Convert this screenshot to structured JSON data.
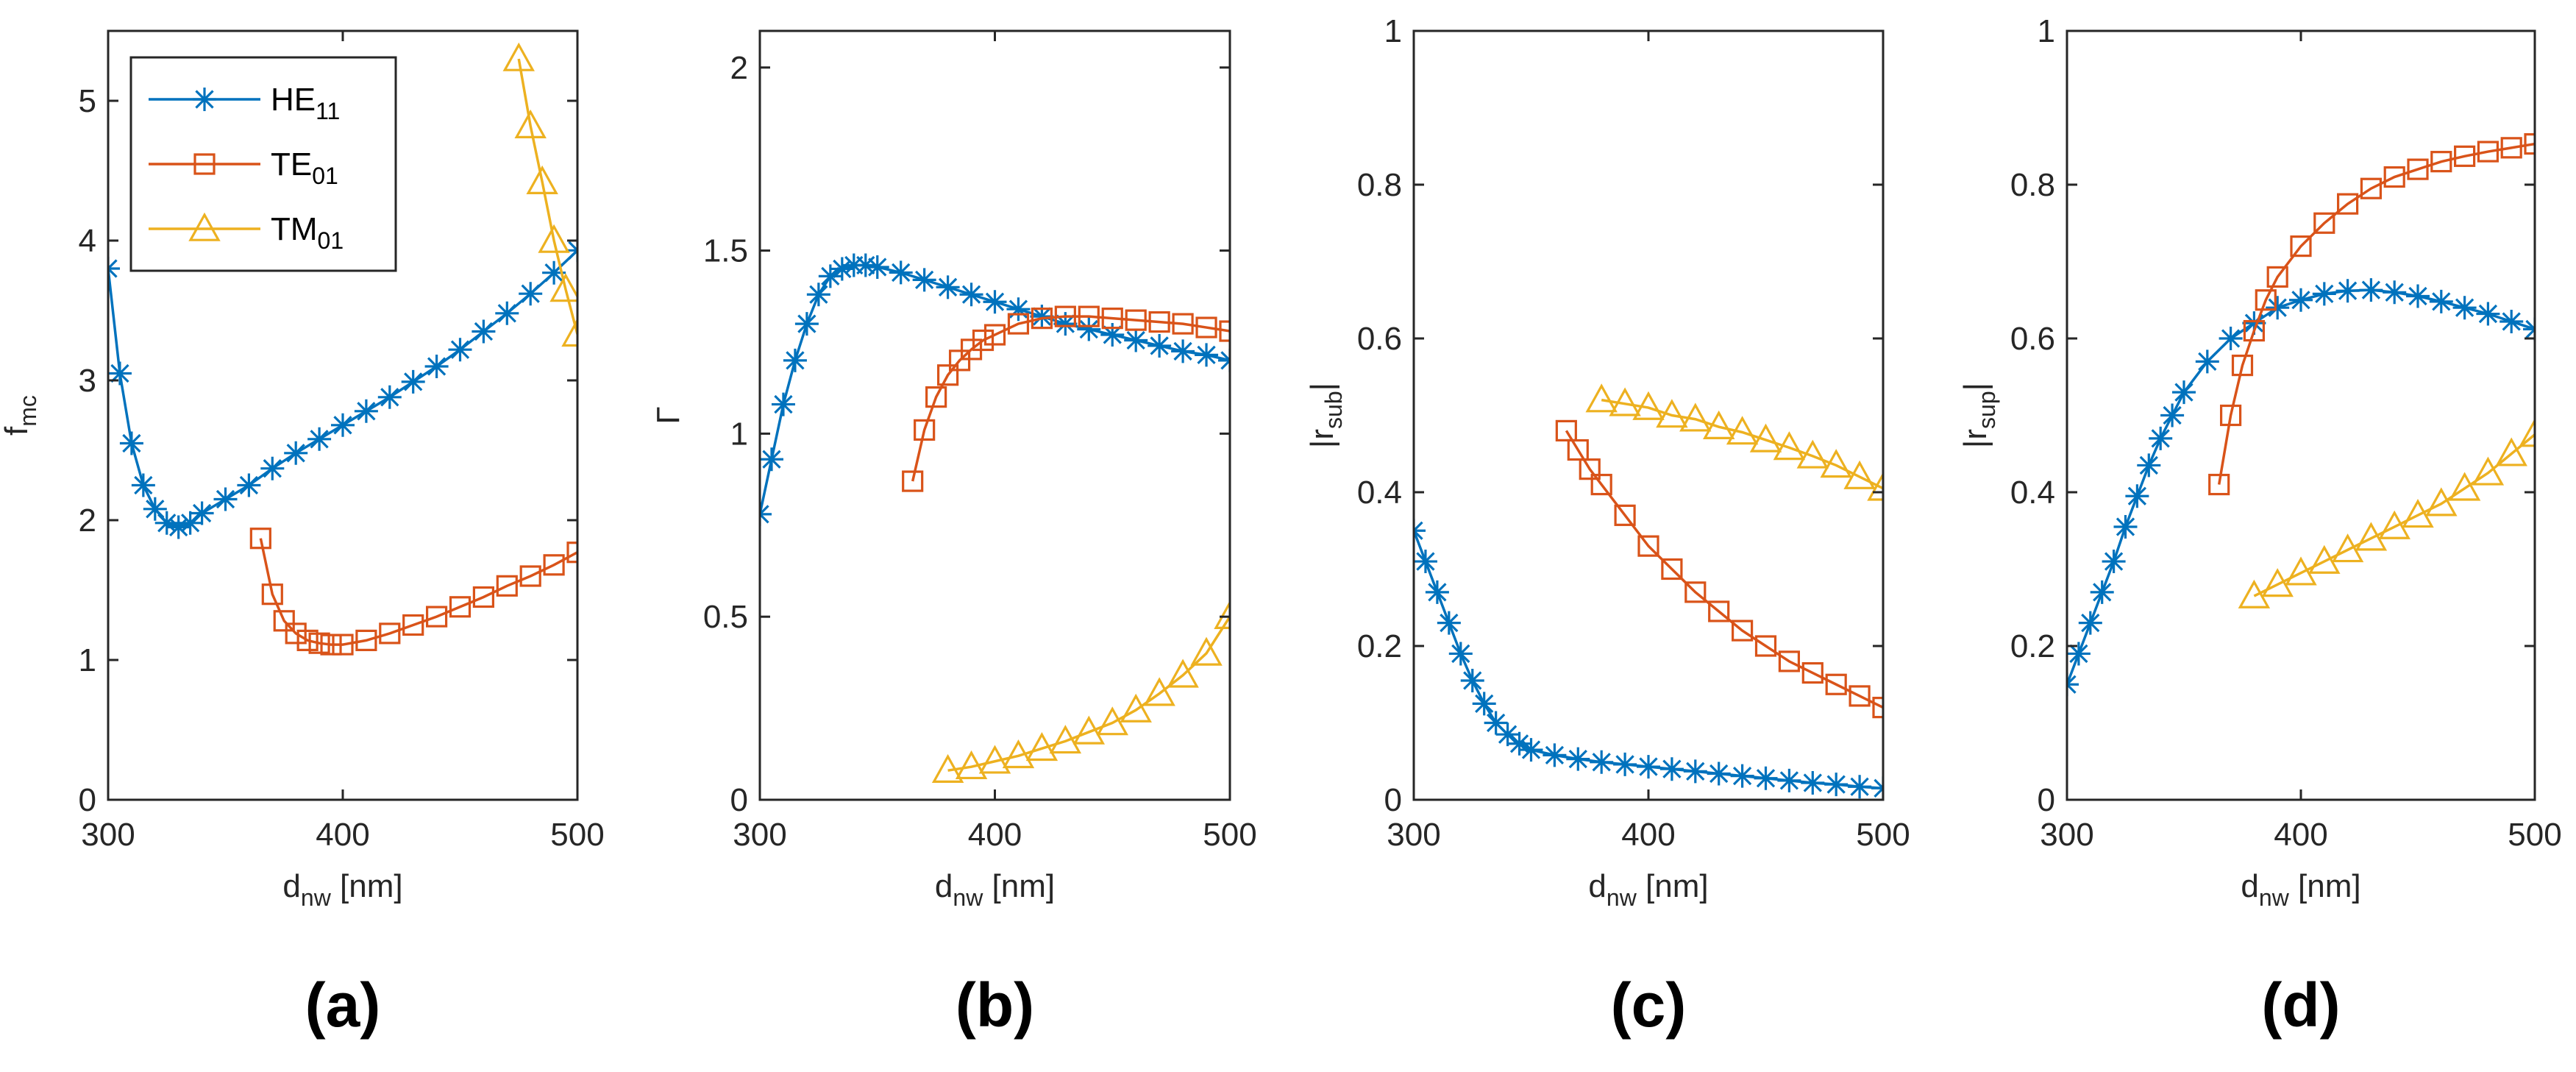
{
  "colors": {
    "HE11": "#0072BD",
    "TE01": "#D95319",
    "TM01": "#EDB120",
    "axis": "#262626"
  },
  "legend": [
    {
      "key": "HE11",
      "base": "HE",
      "sub": "11",
      "marker": "star"
    },
    {
      "key": "TE01",
      "base": "TE",
      "sub": "01",
      "marker": "square"
    },
    {
      "key": "TM01",
      "base": "TM",
      "sub": "01",
      "marker": "triangle"
    }
  ],
  "chart_data": [
    {
      "type": "line",
      "panel_label": "(a)",
      "xlabel": {
        "base": "d",
        "sub": "nw",
        "rest": " [nm]"
      },
      "ylabel": {
        "base": "f",
        "sub": "mc",
        "rest": ""
      },
      "xlim": [
        300,
        500
      ],
      "ylim": [
        0,
        5.5
      ],
      "xticks": [
        "300",
        "400",
        "500"
      ],
      "yticks": [
        "0",
        "1",
        "2",
        "3",
        "4",
        "5"
      ],
      "ytick_values": [
        0,
        1,
        2,
        3,
        4,
        5
      ],
      "series": [
        {
          "name": "HE11",
          "x": [
            300,
            305,
            310,
            315,
            320,
            325,
            330,
            335,
            340,
            350,
            360,
            370,
            380,
            390,
            400,
            410,
            420,
            430,
            440,
            450,
            460,
            470,
            480,
            490,
            500
          ],
          "y": [
            3.8,
            3.05,
            2.55,
            2.25,
            2.08,
            1.98,
            1.95,
            1.98,
            2.05,
            2.15,
            2.25,
            2.37,
            2.48,
            2.58,
            2.68,
            2.78,
            2.88,
            2.99,
            3.1,
            3.22,
            3.35,
            3.48,
            3.62,
            3.77,
            3.93
          ]
        },
        {
          "name": "TE01",
          "x": [
            365,
            370,
            375,
            380,
            385,
            390,
            395,
            400,
            410,
            420,
            430,
            440,
            450,
            460,
            470,
            480,
            490,
            500
          ],
          "y": [
            1.87,
            1.47,
            1.28,
            1.19,
            1.14,
            1.12,
            1.11,
            1.11,
            1.14,
            1.19,
            1.25,
            1.31,
            1.38,
            1.45,
            1.53,
            1.6,
            1.68,
            1.77
          ]
        },
        {
          "name": "TM01",
          "x": [
            475,
            480,
            485,
            490,
            495,
            500
          ],
          "y": [
            5.3,
            4.82,
            4.42,
            4.0,
            3.65,
            3.33
          ]
        }
      ]
    },
    {
      "type": "line",
      "panel_label": "(b)",
      "xlabel": {
        "base": "d",
        "sub": "nw",
        "rest": " [nm]"
      },
      "ylabel": {
        "base": "Γ",
        "sub": "",
        "rest": ""
      },
      "xlim": [
        300,
        500
      ],
      "ylim": [
        0,
        2.1
      ],
      "xticks": [
        "300",
        "400",
        "500"
      ],
      "yticks": [
        "0",
        "0.5",
        "1",
        "1.5",
        "2"
      ],
      "ytick_values": [
        0,
        0.5,
        1,
        1.5,
        2
      ],
      "series": [
        {
          "name": "HE11",
          "x": [
            300,
            305,
            310,
            315,
            320,
            325,
            330,
            335,
            340,
            345,
            350,
            360,
            370,
            380,
            390,
            400,
            410,
            420,
            430,
            440,
            450,
            460,
            470,
            480,
            490,
            500
          ],
          "y": [
            0.78,
            0.93,
            1.08,
            1.2,
            1.3,
            1.38,
            1.43,
            1.45,
            1.46,
            1.46,
            1.455,
            1.44,
            1.42,
            1.4,
            1.38,
            1.36,
            1.34,
            1.32,
            1.3,
            1.285,
            1.27,
            1.255,
            1.24,
            1.225,
            1.215,
            1.2
          ]
        },
        {
          "name": "TE01",
          "x": [
            365,
            370,
            375,
            380,
            385,
            390,
            395,
            400,
            410,
            420,
            430,
            440,
            450,
            460,
            470,
            480,
            490,
            500
          ],
          "y": [
            0.87,
            1.01,
            1.1,
            1.16,
            1.2,
            1.23,
            1.255,
            1.27,
            1.3,
            1.315,
            1.32,
            1.32,
            1.315,
            1.31,
            1.305,
            1.3,
            1.29,
            1.28
          ]
        },
        {
          "name": "TM01",
          "x": [
            380,
            390,
            400,
            410,
            420,
            430,
            440,
            450,
            460,
            470,
            480,
            490,
            500
          ],
          "y": [
            0.08,
            0.09,
            0.105,
            0.12,
            0.14,
            0.16,
            0.185,
            0.21,
            0.245,
            0.29,
            0.34,
            0.4,
            0.5
          ]
        }
      ]
    },
    {
      "type": "line",
      "panel_label": "(c)",
      "xlabel": {
        "base": "d",
        "sub": "nw",
        "rest": " [nm]"
      },
      "ylabel": {
        "base": "|r",
        "sub": "sub",
        "rest": "|"
      },
      "xlim": [
        300,
        500
      ],
      "ylim": [
        0,
        1
      ],
      "xticks": [
        "300",
        "400",
        "500"
      ],
      "yticks": [
        "0",
        "0.2",
        "0.4",
        "0.6",
        "0.8",
        "1"
      ],
      "ytick_values": [
        0,
        0.2,
        0.4,
        0.6,
        0.8,
        1
      ],
      "series": [
        {
          "name": "HE11",
          "x": [
            300,
            305,
            310,
            315,
            320,
            325,
            330,
            335,
            340,
            345,
            350,
            360,
            370,
            380,
            390,
            400,
            410,
            420,
            430,
            440,
            450,
            460,
            470,
            480,
            490,
            500
          ],
          "y": [
            0.35,
            0.31,
            0.27,
            0.23,
            0.19,
            0.155,
            0.125,
            0.1,
            0.085,
            0.073,
            0.065,
            0.058,
            0.053,
            0.049,
            0.046,
            0.043,
            0.04,
            0.037,
            0.034,
            0.031,
            0.028,
            0.025,
            0.022,
            0.02,
            0.017,
            0.015
          ]
        },
        {
          "name": "TE01",
          "x": [
            365,
            370,
            375,
            380,
            390,
            400,
            410,
            420,
            430,
            440,
            450,
            460,
            470,
            480,
            490,
            500
          ],
          "y": [
            0.48,
            0.455,
            0.43,
            0.41,
            0.37,
            0.33,
            0.3,
            0.27,
            0.245,
            0.22,
            0.2,
            0.18,
            0.165,
            0.15,
            0.135,
            0.12
          ]
        },
        {
          "name": "TM01",
          "x": [
            380,
            390,
            400,
            410,
            420,
            430,
            440,
            450,
            460,
            470,
            480,
            490,
            500
          ],
          "y": [
            0.52,
            0.515,
            0.51,
            0.5,
            0.495,
            0.485,
            0.478,
            0.468,
            0.458,
            0.447,
            0.435,
            0.42,
            0.405
          ]
        }
      ]
    },
    {
      "type": "line",
      "panel_label": "(d)",
      "xlabel": {
        "base": "d",
        "sub": "nw",
        "rest": " [nm]"
      },
      "ylabel": {
        "base": "|r",
        "sub": "sup",
        "rest": "|"
      },
      "xlim": [
        300,
        500
      ],
      "ylim": [
        0,
        1
      ],
      "xticks": [
        "300",
        "400",
        "500"
      ],
      "yticks": [
        "0",
        "0.2",
        "0.4",
        "0.6",
        "0.8",
        "1"
      ],
      "ytick_values": [
        0,
        0.2,
        0.4,
        0.6,
        0.8,
        1
      ],
      "series": [
        {
          "name": "HE11",
          "x": [
            300,
            305,
            310,
            315,
            320,
            325,
            330,
            335,
            340,
            345,
            350,
            360,
            370,
            380,
            390,
            400,
            410,
            420,
            430,
            440,
            450,
            460,
            470,
            480,
            490,
            500
          ],
          "y": [
            0.15,
            0.19,
            0.23,
            0.27,
            0.31,
            0.355,
            0.395,
            0.435,
            0.47,
            0.5,
            0.53,
            0.57,
            0.6,
            0.62,
            0.64,
            0.65,
            0.658,
            0.662,
            0.663,
            0.66,
            0.655,
            0.648,
            0.64,
            0.632,
            0.622,
            0.612
          ]
        },
        {
          "name": "TE01",
          "x": [
            365,
            370,
            375,
            380,
            385,
            390,
            400,
            410,
            420,
            430,
            440,
            450,
            460,
            470,
            480,
            490,
            500
          ],
          "y": [
            0.41,
            0.5,
            0.565,
            0.61,
            0.65,
            0.68,
            0.72,
            0.75,
            0.775,
            0.795,
            0.81,
            0.82,
            0.83,
            0.837,
            0.843,
            0.848,
            0.853
          ]
        },
        {
          "name": "TM01",
          "x": [
            380,
            390,
            400,
            410,
            420,
            430,
            440,
            450,
            460,
            470,
            480,
            490,
            500
          ],
          "y": [
            0.265,
            0.28,
            0.295,
            0.31,
            0.325,
            0.34,
            0.355,
            0.37,
            0.385,
            0.405,
            0.425,
            0.45,
            0.475
          ]
        }
      ]
    }
  ]
}
